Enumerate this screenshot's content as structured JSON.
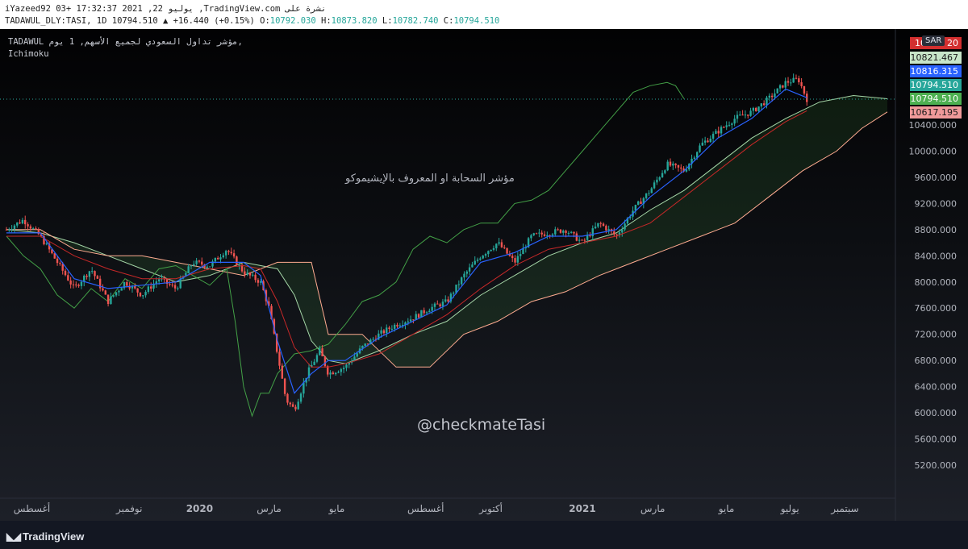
{
  "header": {
    "line1": "iYazeed92 03+ 17:32:37 2021 ,22 يوليو ,TradingView.com نشرة على",
    "symbol": "TADAWUL_DLY:TASI, 1D",
    "last": "10794.510",
    "change": "▲ +16.440 (+0.15%)",
    "o_label": "O:",
    "o": "10792.030",
    "h_label": "H:",
    "h": "10873.820",
    "l_label": "L:",
    "l": "10782.740",
    "c_label": "C:",
    "c": "10794.510"
  },
  "legend": {
    "title": "TADAWUL مؤشر تداول السعودي لجميع الأسهم, 1 يوم,",
    "indicator": "Ichimoku"
  },
  "annotations": {
    "arabic_note": "مؤشر السحابة او المعروف بالإيشيموكو",
    "handle": "@checkmateTasi"
  },
  "currency": "SAR",
  "price_tags": [
    {
      "label": "10",
      "suffix": "20",
      "bg": "#d32f2f",
      "fg": "#ffffff"
    },
    {
      "label": "10821.467",
      "bg": "#c8e6c9",
      "fg": "#1b1b1b"
    },
    {
      "label": "10816.315",
      "bg": "#2962ff",
      "fg": "#ffffff"
    },
    {
      "label": "10794.510",
      "bg": "#26a69a",
      "fg": "#ffffff"
    },
    {
      "label": "10794.510",
      "bg": "#4caf50",
      "fg": "#ffffff"
    },
    {
      "label": "10617.195",
      "bg": "#ef9a9a",
      "fg": "#1b1b1b"
    }
  ],
  "footer": {
    "brand": "TradingView"
  },
  "chart_data": {
    "type": "line",
    "title": "TADAWUL مؤشر تداول السعودي لجميع الأسهم, 1 يوم,",
    "indicator": "Ichimoku",
    "ylim": [
      5000,
      11400
    ],
    "y_ticks": [
      10400,
      10000,
      9600,
      9200,
      8800,
      8400,
      8000,
      7600,
      7200,
      6800,
      6400,
      6000,
      5600,
      5200
    ],
    "y_tick_labels": [
      "10400.000",
      "10000.000",
      "9600.000",
      "9200.000",
      "8800.000",
      "8400.000",
      "8000.000",
      "7600.000",
      "7200.000",
      "6800.000",
      "6400.000",
      "6000.000",
      "5600.000",
      "5200.000"
    ],
    "x_ticks": [
      {
        "label": "أغسطس",
        "t": 0.03
      },
      {
        "label": "نوفمبر",
        "t": 0.145
      },
      {
        "label": "2020",
        "t": 0.228,
        "bold": true
      },
      {
        "label": "مارس",
        "t": 0.31
      },
      {
        "label": "مايو",
        "t": 0.39
      },
      {
        "label": "أغسطس",
        "t": 0.495
      },
      {
        "label": "أكتوبر",
        "t": 0.572
      },
      {
        "label": "2021",
        "t": 0.68,
        "bold": true
      },
      {
        "label": "مارس",
        "t": 0.763
      },
      {
        "label": "مايو",
        "t": 0.85
      },
      {
        "label": "يوليو",
        "t": 0.925
      },
      {
        "label": "سبتمبر",
        "t": 0.99
      }
    ],
    "last_price": 10794.51,
    "price_series": [
      [
        0,
        8800
      ],
      [
        0.02,
        8950
      ],
      [
        0.04,
        8700
      ],
      [
        0.06,
        8300
      ],
      [
        0.08,
        7900
      ],
      [
        0.1,
        8200
      ],
      [
        0.12,
        7700
      ],
      [
        0.14,
        8000
      ],
      [
        0.16,
        7800
      ],
      [
        0.18,
        8050
      ],
      [
        0.2,
        7900
      ],
      [
        0.22,
        8300
      ],
      [
        0.24,
        8250
      ],
      [
        0.26,
        8500
      ],
      [
        0.28,
        8150
      ],
      [
        0.3,
        8000
      ],
      [
        0.31,
        7600
      ],
      [
        0.32,
        6900
      ],
      [
        0.33,
        6200
      ],
      [
        0.34,
        6050
      ],
      [
        0.355,
        6600
      ],
      [
        0.37,
        6950
      ],
      [
        0.38,
        6600
      ],
      [
        0.4,
        6700
      ],
      [
        0.42,
        7000
      ],
      [
        0.44,
        7200
      ],
      [
        0.46,
        7350
      ],
      [
        0.48,
        7450
      ],
      [
        0.5,
        7600
      ],
      [
        0.52,
        7700
      ],
      [
        0.54,
        8100
      ],
      [
        0.56,
        8400
      ],
      [
        0.58,
        8600
      ],
      [
        0.6,
        8300
      ],
      [
        0.62,
        8700
      ],
      [
        0.64,
        8750
      ],
      [
        0.66,
        8800
      ],
      [
        0.68,
        8600
      ],
      [
        0.7,
        8900
      ],
      [
        0.72,
        8700
      ],
      [
        0.74,
        9100
      ],
      [
        0.76,
        9400
      ],
      [
        0.78,
        9800
      ],
      [
        0.8,
        9700
      ],
      [
        0.82,
        10100
      ],
      [
        0.84,
        10300
      ],
      [
        0.86,
        10500
      ],
      [
        0.88,
        10600
      ],
      [
        0.9,
        10800
      ],
      [
        0.92,
        11050
      ],
      [
        0.935,
        11100
      ],
      [
        0.945,
        10794.51
      ]
    ],
    "tenkan": [
      [
        0,
        8750
      ],
      [
        0.04,
        8750
      ],
      [
        0.08,
        8050
      ],
      [
        0.12,
        7900
      ],
      [
        0.16,
        7950
      ],
      [
        0.2,
        8000
      ],
      [
        0.24,
        8300
      ],
      [
        0.28,
        8300
      ],
      [
        0.3,
        8100
      ],
      [
        0.32,
        7100
      ],
      [
        0.34,
        6300
      ],
      [
        0.36,
        6600
      ],
      [
        0.38,
        6800
      ],
      [
        0.4,
        6800
      ],
      [
        0.44,
        7150
      ],
      [
        0.48,
        7400
      ],
      [
        0.52,
        7650
      ],
      [
        0.56,
        8300
      ],
      [
        0.6,
        8450
      ],
      [
        0.64,
        8700
      ],
      [
        0.68,
        8700
      ],
      [
        0.72,
        8800
      ],
      [
        0.76,
        9300
      ],
      [
        0.8,
        9700
      ],
      [
        0.84,
        10200
      ],
      [
        0.88,
        10500
      ],
      [
        0.92,
        10950
      ],
      [
        0.945,
        10816
      ]
    ],
    "kijun": [
      [
        0,
        8700
      ],
      [
        0.04,
        8700
      ],
      [
        0.08,
        8400
      ],
      [
        0.12,
        8200
      ],
      [
        0.16,
        8050
      ],
      [
        0.2,
        8050
      ],
      [
        0.24,
        8200
      ],
      [
        0.28,
        8250
      ],
      [
        0.3,
        8200
      ],
      [
        0.32,
        7700
      ],
      [
        0.34,
        7000
      ],
      [
        0.36,
        6700
      ],
      [
        0.38,
        6700
      ],
      [
        0.4,
        6750
      ],
      [
        0.44,
        6900
      ],
      [
        0.48,
        7200
      ],
      [
        0.52,
        7500
      ],
      [
        0.56,
        7900
      ],
      [
        0.6,
        8250
      ],
      [
        0.64,
        8500
      ],
      [
        0.68,
        8600
      ],
      [
        0.72,
        8700
      ],
      [
        0.76,
        8900
      ],
      [
        0.8,
        9300
      ],
      [
        0.84,
        9700
      ],
      [
        0.88,
        10100
      ],
      [
        0.92,
        10450
      ],
      [
        0.945,
        10617
      ]
    ],
    "chikou": [
      [
        0,
        8700
      ],
      [
        0.02,
        8400
      ],
      [
        0.04,
        8200
      ],
      [
        0.06,
        7800
      ],
      [
        0.08,
        7600
      ],
      [
        0.1,
        7900
      ],
      [
        0.12,
        7700
      ],
      [
        0.14,
        8050
      ],
      [
        0.16,
        7900
      ],
      [
        0.18,
        8200
      ],
      [
        0.2,
        8250
      ],
      [
        0.22,
        8100
      ],
      [
        0.24,
        7950
      ],
      [
        0.26,
        8200
      ],
      [
        0.27,
        7400
      ],
      [
        0.28,
        6400
      ],
      [
        0.29,
        5950
      ],
      [
        0.3,
        6300
      ],
      [
        0.31,
        6300
      ],
      [
        0.32,
        6600
      ],
      [
        0.34,
        6900
      ],
      [
        0.36,
        6950
      ],
      [
        0.38,
        7050
      ],
      [
        0.4,
        7350
      ],
      [
        0.42,
        7700
      ],
      [
        0.44,
        7800
      ],
      [
        0.46,
        8000
      ],
      [
        0.48,
        8500
      ],
      [
        0.5,
        8700
      ],
      [
        0.52,
        8600
      ],
      [
        0.54,
        8800
      ],
      [
        0.56,
        8900
      ],
      [
        0.58,
        8900
      ],
      [
        0.6,
        9200
      ],
      [
        0.62,
        9250
      ],
      [
        0.64,
        9400
      ],
      [
        0.66,
        9700
      ],
      [
        0.68,
        10000
      ],
      [
        0.7,
        10300
      ],
      [
        0.72,
        10600
      ],
      [
        0.74,
        10900
      ],
      [
        0.76,
        11000
      ],
      [
        0.78,
        11050
      ],
      [
        0.79,
        11000
      ],
      [
        0.8,
        10800
      ]
    ],
    "span_a": [
      [
        0,
        8800
      ],
      [
        0.04,
        8750
      ],
      [
        0.08,
        8600
      ],
      [
        0.12,
        8400
      ],
      [
        0.16,
        8200
      ],
      [
        0.2,
        8000
      ],
      [
        0.24,
        8100
      ],
      [
        0.28,
        8300
      ],
      [
        0.32,
        8200
      ],
      [
        0.34,
        7800
      ],
      [
        0.36,
        7100
      ],
      [
        0.38,
        6800
      ],
      [
        0.4,
        6750
      ],
      [
        0.44,
        6950
      ],
      [
        0.48,
        7200
      ],
      [
        0.52,
        7400
      ],
      [
        0.56,
        7800
      ],
      [
        0.6,
        8100
      ],
      [
        0.64,
        8400
      ],
      [
        0.68,
        8600
      ],
      [
        0.72,
        8750
      ],
      [
        0.76,
        9100
      ],
      [
        0.8,
        9400
      ],
      [
        0.84,
        9800
      ],
      [
        0.88,
        10200
      ],
      [
        0.92,
        10500
      ],
      [
        0.96,
        10750
      ],
      [
        1.0,
        10850
      ],
      [
        1.04,
        10800
      ]
    ],
    "span_b": [
      [
        0,
        8800
      ],
      [
        0.04,
        8800
      ],
      [
        0.08,
        8500
      ],
      [
        0.12,
        8400
      ],
      [
        0.16,
        8400
      ],
      [
        0.2,
        8300
      ],
      [
        0.24,
        8200
      ],
      [
        0.28,
        8100
      ],
      [
        0.32,
        8300
      ],
      [
        0.36,
        8300
      ],
      [
        0.38,
        7200
      ],
      [
        0.42,
        7200
      ],
      [
        0.46,
        6700
      ],
      [
        0.5,
        6700
      ],
      [
        0.54,
        7200
      ],
      [
        0.58,
        7400
      ],
      [
        0.62,
        7700
      ],
      [
        0.66,
        7850
      ],
      [
        0.7,
        8100
      ],
      [
        0.74,
        8300
      ],
      [
        0.78,
        8500
      ],
      [
        0.82,
        8700
      ],
      [
        0.86,
        8900
      ],
      [
        0.9,
        9300
      ],
      [
        0.94,
        9700
      ],
      [
        0.98,
        10000
      ],
      [
        1.01,
        10350
      ],
      [
        1.04,
        10600
      ]
    ]
  }
}
